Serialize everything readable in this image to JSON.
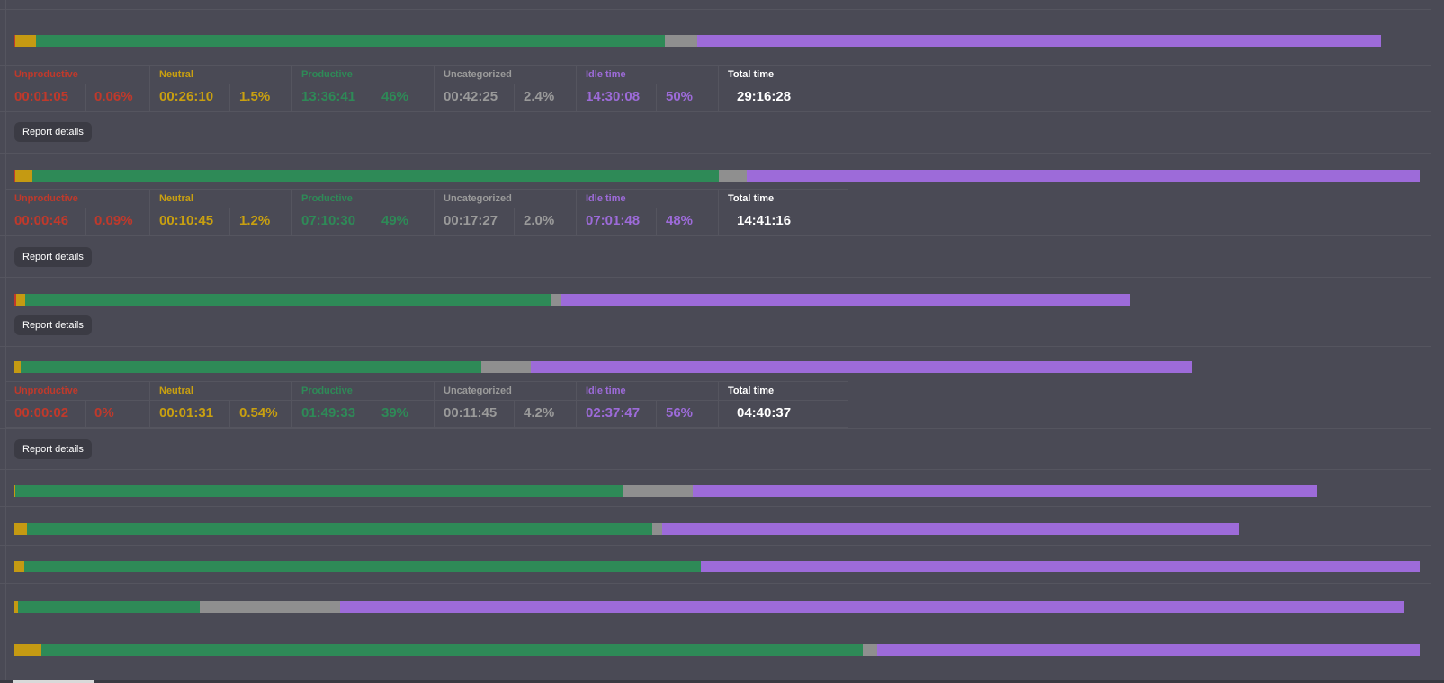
{
  "colors": {
    "unproductive": "#c0392b",
    "neutral": "#c59a12",
    "productive": "#2e8a57",
    "uncategorized": "#8f8f8f",
    "idle": "#9d6bd9",
    "total": "#ffffff",
    "background": "#4a4a55"
  },
  "labels": {
    "unproductive": "Unproductive",
    "neutral": "Neutral",
    "productive": "Productive",
    "uncategorized": "Uncategorized",
    "idle": "Idle time",
    "total": "Total time",
    "report_button": "Report details"
  },
  "summaries": [
    {
      "unproductive_time": "00:01:05",
      "unproductive_pct": "0.06%",
      "neutral_time": "00:26:10",
      "neutral_pct": "1.5%",
      "productive_time": "13:36:41",
      "productive_pct": "46%",
      "uncategorized_time": "00:42:25",
      "uncategorized_pct": "2.4%",
      "idle_time": "14:30:08",
      "idle_pct": "50%",
      "total_time": "29:16:28"
    },
    {
      "unproductive_time": "00:00:46",
      "unproductive_pct": "0.09%",
      "neutral_time": "00:10:45",
      "neutral_pct": "1.2%",
      "productive_time": "07:10:30",
      "productive_pct": "49%",
      "uncategorized_time": "00:17:27",
      "uncategorized_pct": "2.0%",
      "idle_time": "07:01:48",
      "idle_pct": "48%",
      "total_time": "14:41:16"
    },
    {
      "unproductive_time": "00:00:02",
      "unproductive_pct": "0%",
      "neutral_time": "00:01:31",
      "neutral_pct": "0.54%",
      "productive_time": "01:49:33",
      "productive_pct": "39%",
      "uncategorized_time": "00:11:45",
      "uncategorized_pct": "4.2%",
      "idle_time": "02:37:47",
      "idle_pct": "56%",
      "total_time": "04:40:37"
    }
  ],
  "bars": [
    {
      "unproductive": 0.0006,
      "neutral": 0.015,
      "productive": 0.46,
      "uncategorized": 0.024,
      "idle": 0.5
    },
    {
      "unproductive": 0.0009,
      "neutral": 0.012,
      "productive": 0.49,
      "uncategorized": 0.02,
      "idle": 0.48
    },
    {
      "unproductive": 0.002,
      "neutral": 0.008,
      "productive": 0.47,
      "uncategorized": 0.009,
      "idle": 0.51
    },
    {
      "unproductive": 0.0,
      "neutral": 0.0054,
      "productive": 0.39,
      "uncategorized": 0.042,
      "idle": 0.56
    },
    {
      "unproductive": 0.0,
      "neutral": 0.001,
      "productive": 0.466,
      "uncategorized": 0.054,
      "idle": 0.48
    },
    {
      "unproductive": 0.0,
      "neutral": 0.01,
      "productive": 0.51,
      "uncategorized": 0.008,
      "idle": 0.47
    },
    {
      "unproductive": 0.0,
      "neutral": 0.007,
      "productive": 0.48,
      "uncategorized": 0.0,
      "idle": 0.51
    },
    {
      "unproductive": 0.0,
      "neutral": 0.0025,
      "productive": 0.13,
      "uncategorized": 0.1,
      "idle": 0.76
    },
    {
      "unproductive": 0.0,
      "neutral": 0.019,
      "productive": 0.585,
      "uncategorized": 0.01,
      "idle": 0.386
    }
  ]
}
